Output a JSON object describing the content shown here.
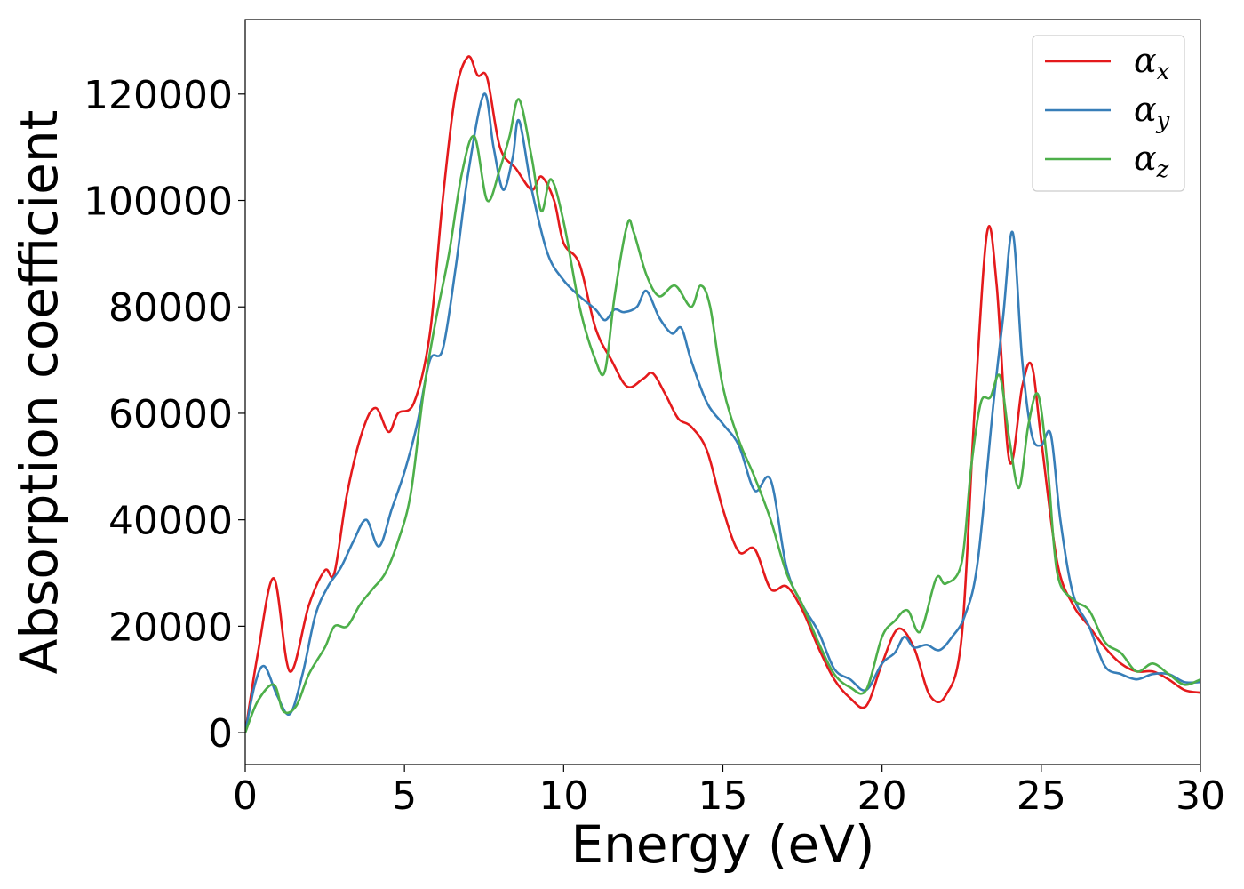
{
  "chart_data": {
    "type": "line",
    "xlabel": "Energy (eV)",
    "ylabel": "Absorption coefficient",
    "xlim": [
      0,
      30
    ],
    "ylim": [
      -6000,
      134000
    ],
    "xticks": [
      0,
      5,
      10,
      15,
      20,
      25,
      30
    ],
    "xtick_labels": [
      "0",
      "5",
      "10",
      "15",
      "20",
      "25",
      "30"
    ],
    "yticks": [
      0,
      20000,
      40000,
      60000,
      80000,
      100000,
      120000
    ],
    "ytick_labels": [
      "0",
      "20000",
      "40000",
      "60000",
      "80000",
      "100000",
      "120000"
    ],
    "grid": false,
    "legend_position": "top-right",
    "series": [
      {
        "name": "α",
        "subscript": "x",
        "color": "#e41a1c",
        "x": [
          0,
          0.4,
          0.9,
          1.4,
          2.0,
          2.5,
          2.8,
          3.2,
          3.7,
          4.1,
          4.5,
          4.8,
          5.3,
          5.8,
          6.2,
          6.6,
          7.0,
          7.3,
          7.6,
          8.0,
          8.5,
          9.0,
          9.3,
          9.7,
          10.0,
          10.5,
          11.0,
          11.5,
          12.0,
          12.5,
          12.8,
          13.2,
          13.6,
          14.0,
          14.5,
          15.0,
          15.5,
          16.0,
          16.5,
          17.0,
          17.5,
          18.0,
          18.5,
          19.0,
          19.5,
          20.0,
          20.5,
          21.0,
          21.5,
          22.0,
          22.5,
          22.9,
          23.3,
          23.6,
          24.0,
          24.4,
          24.7,
          25.0,
          25.5,
          26.0,
          26.5,
          27.0,
          27.5,
          28.0,
          28.5,
          29.0,
          29.5,
          30.0
        ],
        "y": [
          0,
          15000,
          29000,
          11500,
          24000,
          30500,
          30000,
          45000,
          57000,
          61000,
          56500,
          60000,
          62000,
          75000,
          100000,
          120000,
          127000,
          123500,
          123000,
          110000,
          106000,
          102000,
          104500,
          100000,
          92000,
          88000,
          76000,
          70000,
          65000,
          66500,
          67500,
          63500,
          59000,
          57500,
          53000,
          42000,
          34000,
          34500,
          27000,
          27500,
          23000,
          16000,
          10000,
          6500,
          5000,
          13000,
          19500,
          16000,
          7000,
          7000,
          18000,
          60000,
          94000,
          84000,
          51000,
          65000,
          69000,
          55000,
          32000,
          24000,
          20000,
          16000,
          13000,
          11500,
          11500,
          10000,
          8000,
          7500
        ]
      },
      {
        "name": "α",
        "subscript": "y",
        "color": "#377eb8",
        "x": [
          0,
          0.3,
          0.6,
          1.0,
          1.4,
          1.8,
          2.2,
          2.6,
          3.0,
          3.4,
          3.8,
          4.2,
          4.6,
          5.0,
          5.4,
          5.8,
          6.2,
          6.6,
          7.0,
          7.5,
          7.8,
          8.1,
          8.4,
          8.6,
          9.0,
          9.5,
          10.0,
          10.5,
          11.0,
          11.3,
          11.6,
          11.9,
          12.3,
          12.6,
          13.0,
          13.4,
          13.7,
          14.0,
          14.5,
          15.0,
          15.5,
          16.0,
          16.5,
          17.0,
          17.5,
          18.0,
          18.5,
          19.0,
          19.5,
          20.0,
          20.4,
          20.7,
          21.0,
          21.4,
          21.8,
          22.2,
          22.6,
          23.0,
          23.5,
          23.8,
          24.1,
          24.4,
          24.7,
          25.0,
          25.3,
          25.6,
          26.0,
          26.5,
          27.0,
          27.5,
          28.0,
          28.5,
          29.0,
          29.5,
          30.0
        ],
        "y": [
          0,
          9000,
          12500,
          7000,
          3500,
          11000,
          22000,
          27500,
          31000,
          36000,
          40000,
          35000,
          42000,
          49000,
          58000,
          70000,
          72000,
          87000,
          105000,
          120000,
          110000,
          102000,
          108000,
          115000,
          102000,
          90000,
          85000,
          82000,
          79500,
          77500,
          79500,
          79000,
          80000,
          83000,
          78000,
          75000,
          76000,
          70000,
          62000,
          58000,
          54000,
          45500,
          47500,
          31000,
          24000,
          19000,
          12000,
          10000,
          8000,
          13000,
          15000,
          18000,
          16000,
          16500,
          15500,
          18000,
          22000,
          32000,
          62000,
          78000,
          94000,
          70000,
          56000,
          54000,
          56000,
          40000,
          26000,
          20000,
          12500,
          11000,
          10000,
          11000,
          11000,
          9500,
          9500
        ]
      },
      {
        "name": "α",
        "subscript": "z",
        "color": "#4daf4a",
        "x": [
          0,
          0.4,
          0.9,
          1.2,
          1.6,
          2.0,
          2.5,
          2.8,
          3.2,
          3.6,
          4.0,
          4.4,
          4.8,
          5.2,
          5.6,
          6.0,
          6.4,
          6.8,
          7.2,
          7.6,
          8.0,
          8.3,
          8.6,
          9.0,
          9.3,
          9.6,
          10.0,
          10.5,
          11.0,
          11.3,
          11.6,
          12.0,
          12.2,
          12.6,
          13.0,
          13.5,
          14.0,
          14.3,
          14.6,
          15.0,
          15.5,
          16.0,
          16.5,
          17.0,
          17.5,
          18.0,
          18.5,
          19.0,
          19.5,
          20.0,
          20.4,
          20.8,
          21.2,
          21.7,
          22.0,
          22.5,
          22.8,
          23.1,
          23.4,
          23.7,
          24.0,
          24.3,
          24.6,
          24.9,
          25.2,
          25.5,
          26.0,
          26.5,
          27.0,
          27.5,
          28.0,
          28.5,
          29.0,
          29.5,
          30.0
        ],
        "y": [
          0,
          6000,
          9000,
          4000,
          5000,
          11000,
          16000,
          20000,
          20000,
          24000,
          27000,
          30000,
          36000,
          45000,
          64000,
          78000,
          90000,
          105000,
          112000,
          100000,
          106000,
          112000,
          119000,
          108000,
          98000,
          104000,
          96000,
          80000,
          70000,
          68000,
          82000,
          95500,
          94000,
          86000,
          82000,
          84000,
          80000,
          84000,
          80000,
          65000,
          55000,
          48000,
          40000,
          30000,
          24000,
          17000,
          11000,
          8500,
          8000,
          18000,
          21000,
          23000,
          19000,
          29000,
          28000,
          32000,
          50000,
          62000,
          63000,
          67000,
          55000,
          46000,
          58000,
          63500,
          50000,
          30000,
          25000,
          23000,
          17000,
          15000,
          11500,
          13000,
          11000,
          9000,
          10000
        ]
      }
    ]
  }
}
